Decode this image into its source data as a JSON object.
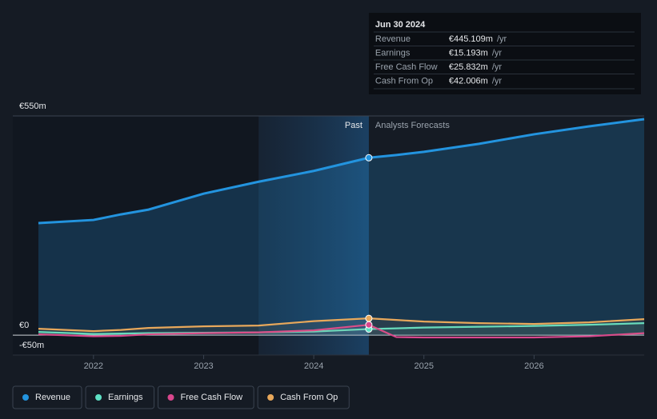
{
  "chart_data": {
    "type": "line",
    "x": [
      2021.5,
      2022.0,
      2022.25,
      2022.5,
      2023.0,
      2023.5,
      2024.0,
      2024.5,
      2024.75,
      2025.0,
      2025.5,
      2026.0,
      2026.5,
      2027.0
    ],
    "series": [
      {
        "name": "Revenue",
        "color": "#2394df",
        "values": [
          281,
          289,
          303,
          315,
          355,
          385,
          412,
          445.109,
          452,
          460,
          480,
          504,
          524,
          542
        ]
      },
      {
        "name": "Earnings",
        "color": "#5ee0c4",
        "values": [
          8,
          3,
          4,
          5,
          6,
          7,
          9,
          15.193,
          17,
          19,
          21,
          23,
          26,
          30
        ]
      },
      {
        "name": "Free Cash Flow",
        "color": "#d9478d",
        "values": [
          2,
          -3,
          -2,
          2,
          5,
          7,
          12,
          25.832,
          -5,
          -6,
          -6,
          -6,
          -3,
          5
        ]
      },
      {
        "name": "Cash From Op",
        "color": "#e8a85b",
        "values": [
          16,
          10,
          13,
          18,
          22,
          24,
          35,
          42.006,
          38,
          34,
          30,
          28,
          32,
          40
        ]
      }
    ],
    "xlim": [
      2021.5,
      2027.0
    ],
    "xticks": [
      2022,
      2023,
      2024,
      2025,
      2026
    ],
    "ylim": [
      -50,
      550
    ],
    "yticks": [
      {
        "value": 550,
        "label": "€550m"
      },
      {
        "value": 0,
        "label": "€0"
      },
      {
        "value": -50,
        "label": "-€50m"
      }
    ],
    "past_label": "Past",
    "forecast_label": "Analysts Forecasts",
    "tooltip": {
      "date": "Jun 30 2024",
      "x": 2024.5,
      "items": [
        {
          "label": "Revenue",
          "value": 445.109,
          "value_label": "€445.109m",
          "unit": "/yr"
        },
        {
          "label": "Earnings",
          "value": 15.193,
          "value_label": "€15.193m",
          "unit": "/yr"
        },
        {
          "label": "Free Cash Flow",
          "value": 25.832,
          "value_label": "€25.832m",
          "unit": "/yr"
        },
        {
          "label": "Cash From Op",
          "value": 42.006,
          "value_label": "€42.006m",
          "unit": "/yr"
        }
      ]
    }
  }
}
